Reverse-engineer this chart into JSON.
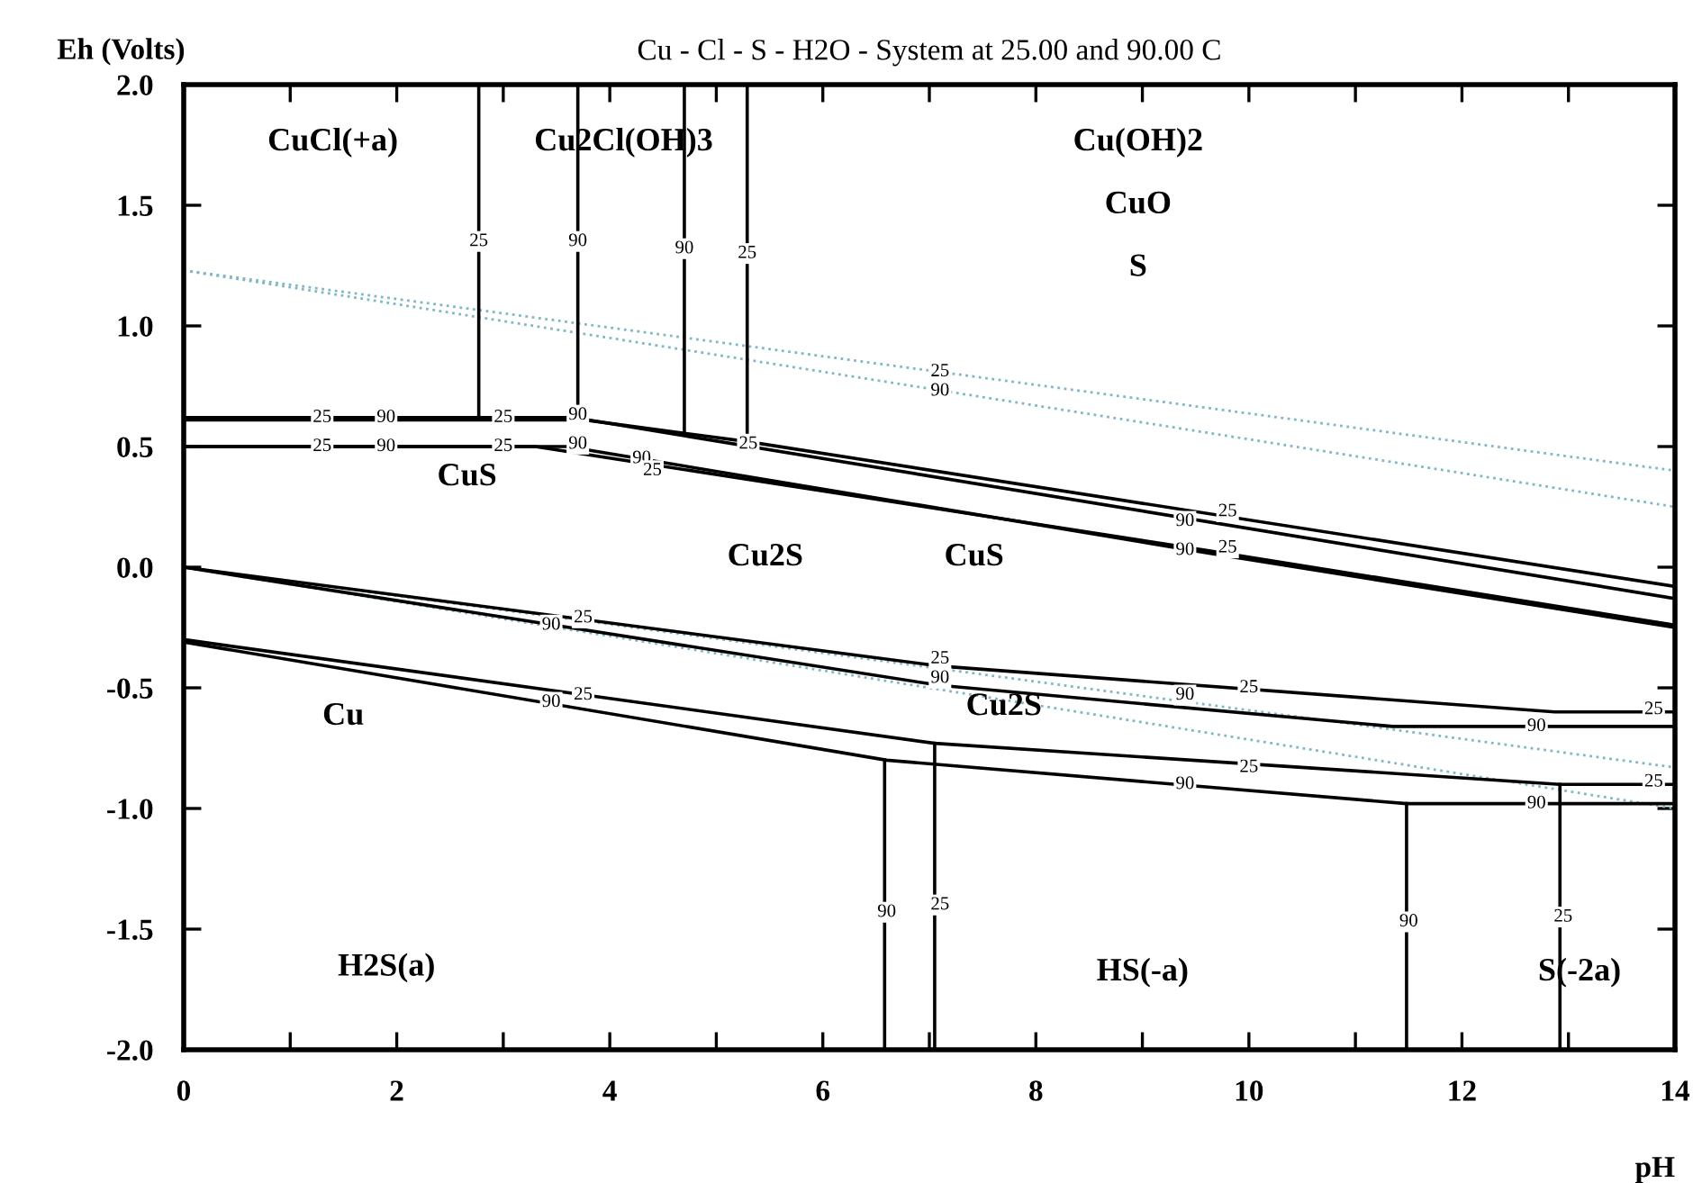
{
  "chart_data": {
    "type": "line",
    "title": "Cu - Cl - S - H2O - System at 25.00 and 90.00 C",
    "xlabel": "pH",
    "ylabel": "Eh (Volts)",
    "xlim": [
      0,
      14
    ],
    "ylim": [
      -2.0,
      2.0
    ],
    "xticks": [
      0,
      {
        "value": 1,
        "label": null
      },
      2,
      {
        "value": 3,
        "label": null
      },
      4,
      {
        "value": 5,
        "label": null
      },
      6,
      {
        "value": 7,
        "label": null
      },
      8,
      {
        "value": 9,
        "label": null
      },
      10,
      {
        "value": 11,
        "label": null
      },
      12,
      {
        "value": 13,
        "label": null
      },
      14
    ],
    "yticks": [
      {
        "value": -2.0,
        "label": "-2.0"
      },
      {
        "value": -1.5,
        "label": "-1.5"
      },
      {
        "value": -1.0,
        "label": "-1.0"
      },
      {
        "value": -0.5,
        "label": "-0.5"
      },
      {
        "value": 0.0,
        "label": "0.0"
      },
      {
        "value": 0.5,
        "label": "0.5"
      },
      {
        "value": 1.0,
        "label": "1.0"
      },
      {
        "value": 1.5,
        "label": "1.5"
      },
      {
        "value": 2.0,
        "label": "2.0"
      }
    ],
    "grid": false,
    "legend": false,
    "line_style": "solid",
    "series": [
      {
        "color": "#7fb8c0",
        "line_style": "dotted",
        "x": [
          0,
          14
        ],
        "values": [
          1.23,
          0.4
        ]
      },
      {
        "color": "#7fb8c0",
        "line_style": "dotted",
        "x": [
          0,
          14
        ],
        "values": [
          1.23,
          0.25
        ]
      },
      {
        "color": "#7fb8c0",
        "line_style": "dotted",
        "x": [
          0,
          14
        ],
        "values": [
          0.0,
          -0.83
        ]
      },
      {
        "color": "#7fb8c0",
        "line_style": "dotted",
        "x": [
          0,
          14
        ],
        "values": [
          0.0,
          -1.0
        ]
      },
      {
        "color": "#000000",
        "x": [
          2.77,
          2.77
        ],
        "values": [
          2.0,
          0.62
        ]
      },
      {
        "color": "#000000",
        "x": [
          3.7,
          3.7
        ],
        "values": [
          2.0,
          0.62
        ]
      },
      {
        "color": "#000000",
        "x": [
          4.7,
          4.7
        ],
        "values": [
          2.0,
          0.56
        ]
      },
      {
        "color": "#000000",
        "x": [
          5.29,
          5.29
        ],
        "values": [
          2.0,
          0.52
        ]
      },
      {
        "color": "#000000",
        "x": [
          0,
          3.6,
          5.3,
          14
        ],
        "values": [
          0.62,
          0.62,
          0.52,
          -0.08
        ]
      },
      {
        "color": "#000000",
        "x": [
          0,
          3.8,
          14
        ],
        "values": [
          0.61,
          0.61,
          -0.13
        ]
      },
      {
        "color": "#000000",
        "x": [
          0,
          3.3,
          9.6,
          14
        ],
        "values": [
          0.5,
          0.5,
          0.07,
          -0.24
        ]
      },
      {
        "color": "#000000",
        "x": [
          0,
          3.6,
          9.6,
          14
        ],
        "values": [
          0.5,
          0.5,
          0.06,
          -0.25
        ]
      },
      {
        "color": "#000000",
        "x": [
          0,
          7.1,
          12.87,
          14
        ],
        "values": [
          0.0,
          -0.41,
          -0.6,
          -0.6
        ]
      },
      {
        "color": "#000000",
        "x": [
          0,
          7.1,
          11.35,
          14
        ],
        "values": [
          0.0,
          -0.49,
          -0.66,
          -0.66
        ]
      },
      {
        "color": "#000000",
        "x": [
          0,
          7.05,
          12.92,
          14
        ],
        "values": [
          -0.3,
          -0.73,
          -0.9,
          -0.9
        ]
      },
      {
        "color": "#000000",
        "x": [
          0,
          6.6,
          11.48,
          14
        ],
        "values": [
          -0.31,
          -0.8,
          -0.98,
          -0.98
        ]
      },
      {
        "color": "#000000",
        "x": [
          6.58,
          6.58
        ],
        "values": [
          -2.0,
          -0.8
        ]
      },
      {
        "color": "#000000",
        "x": [
          7.05,
          7.05
        ],
        "values": [
          -2.0,
          -0.73
        ]
      },
      {
        "color": "#000000",
        "x": [
          11.48,
          11.48
        ],
        "values": [
          -2.0,
          -0.98
        ]
      },
      {
        "color": "#000000",
        "x": [
          12.92,
          12.92
        ],
        "values": [
          -2.0,
          -0.9
        ]
      }
    ],
    "annotations": [
      {
        "text": "25",
        "x": 2.77,
        "y": 1.35
      },
      {
        "text": "90",
        "x": 3.7,
        "y": 1.35
      },
      {
        "text": "90",
        "x": 4.7,
        "y": 1.32
      },
      {
        "text": "25",
        "x": 5.29,
        "y": 1.3
      },
      {
        "text": "25",
        "x": 7.1,
        "y": 0.81
      },
      {
        "text": "90",
        "x": 7.1,
        "y": 0.73
      },
      {
        "text": "25",
        "x": 1.3,
        "y": 0.62
      },
      {
        "text": "90",
        "x": 1.9,
        "y": 0.62
      },
      {
        "text": "25",
        "x": 3.0,
        "y": 0.62
      },
      {
        "text": "90",
        "x": 3.7,
        "y": 0.63
      },
      {
        "text": "25",
        "x": 1.3,
        "y": 0.5
      },
      {
        "text": "90",
        "x": 1.9,
        "y": 0.5
      },
      {
        "text": "25",
        "x": 3.0,
        "y": 0.5
      },
      {
        "text": "90",
        "x": 3.7,
        "y": 0.51
      },
      {
        "text": "90",
        "x": 4.3,
        "y": 0.45
      },
      {
        "text": "25",
        "x": 4.4,
        "y": 0.4
      },
      {
        "text": "25",
        "x": 5.3,
        "y": 0.51
      },
      {
        "text": "25",
        "x": 9.8,
        "y": 0.23
      },
      {
        "text": "90",
        "x": 9.4,
        "y": 0.19
      },
      {
        "text": "90",
        "x": 9.4,
        "y": 0.07
      },
      {
        "text": "25",
        "x": 9.8,
        "y": 0.08
      },
      {
        "text": "90",
        "x": 3.45,
        "y": -0.24
      },
      {
        "text": "25",
        "x": 3.75,
        "y": -0.21
      },
      {
        "text": "25",
        "x": 7.1,
        "y": -0.38
      },
      {
        "text": "90",
        "x": 7.1,
        "y": -0.46
      },
      {
        "text": "90",
        "x": 9.4,
        "y": -0.53
      },
      {
        "text": "25",
        "x": 10.0,
        "y": -0.5
      },
      {
        "text": "90",
        "x": 12.7,
        "y": -0.66
      },
      {
        "text": "25",
        "x": 13.8,
        "y": -0.59
      },
      {
        "text": "90",
        "x": 3.45,
        "y": -0.56
      },
      {
        "text": "25",
        "x": 3.75,
        "y": -0.53
      },
      {
        "text": "90",
        "x": 9.4,
        "y": -0.9
      },
      {
        "text": "25",
        "x": 10.0,
        "y": -0.83
      },
      {
        "text": "90",
        "x": 12.7,
        "y": -0.98
      },
      {
        "text": "25",
        "x": 13.8,
        "y": -0.89
      },
      {
        "text": "90",
        "x": 6.6,
        "y": -1.43
      },
      {
        "text": "25",
        "x": 7.1,
        "y": -1.4
      },
      {
        "text": "90",
        "x": 11.5,
        "y": -1.47
      },
      {
        "text": "25",
        "x": 12.95,
        "y": -1.45
      },
      "CuCl(+a)",
      "Cu2Cl(OH)3",
      "Cu(OH)2",
      "CuO",
      "S",
      "CuS",
      "Cu2S",
      "CuS",
      "Cu2S",
      "Cu",
      "H2S(a)",
      "HS(-a)",
      "S(-2a)"
    ]
  }
}
